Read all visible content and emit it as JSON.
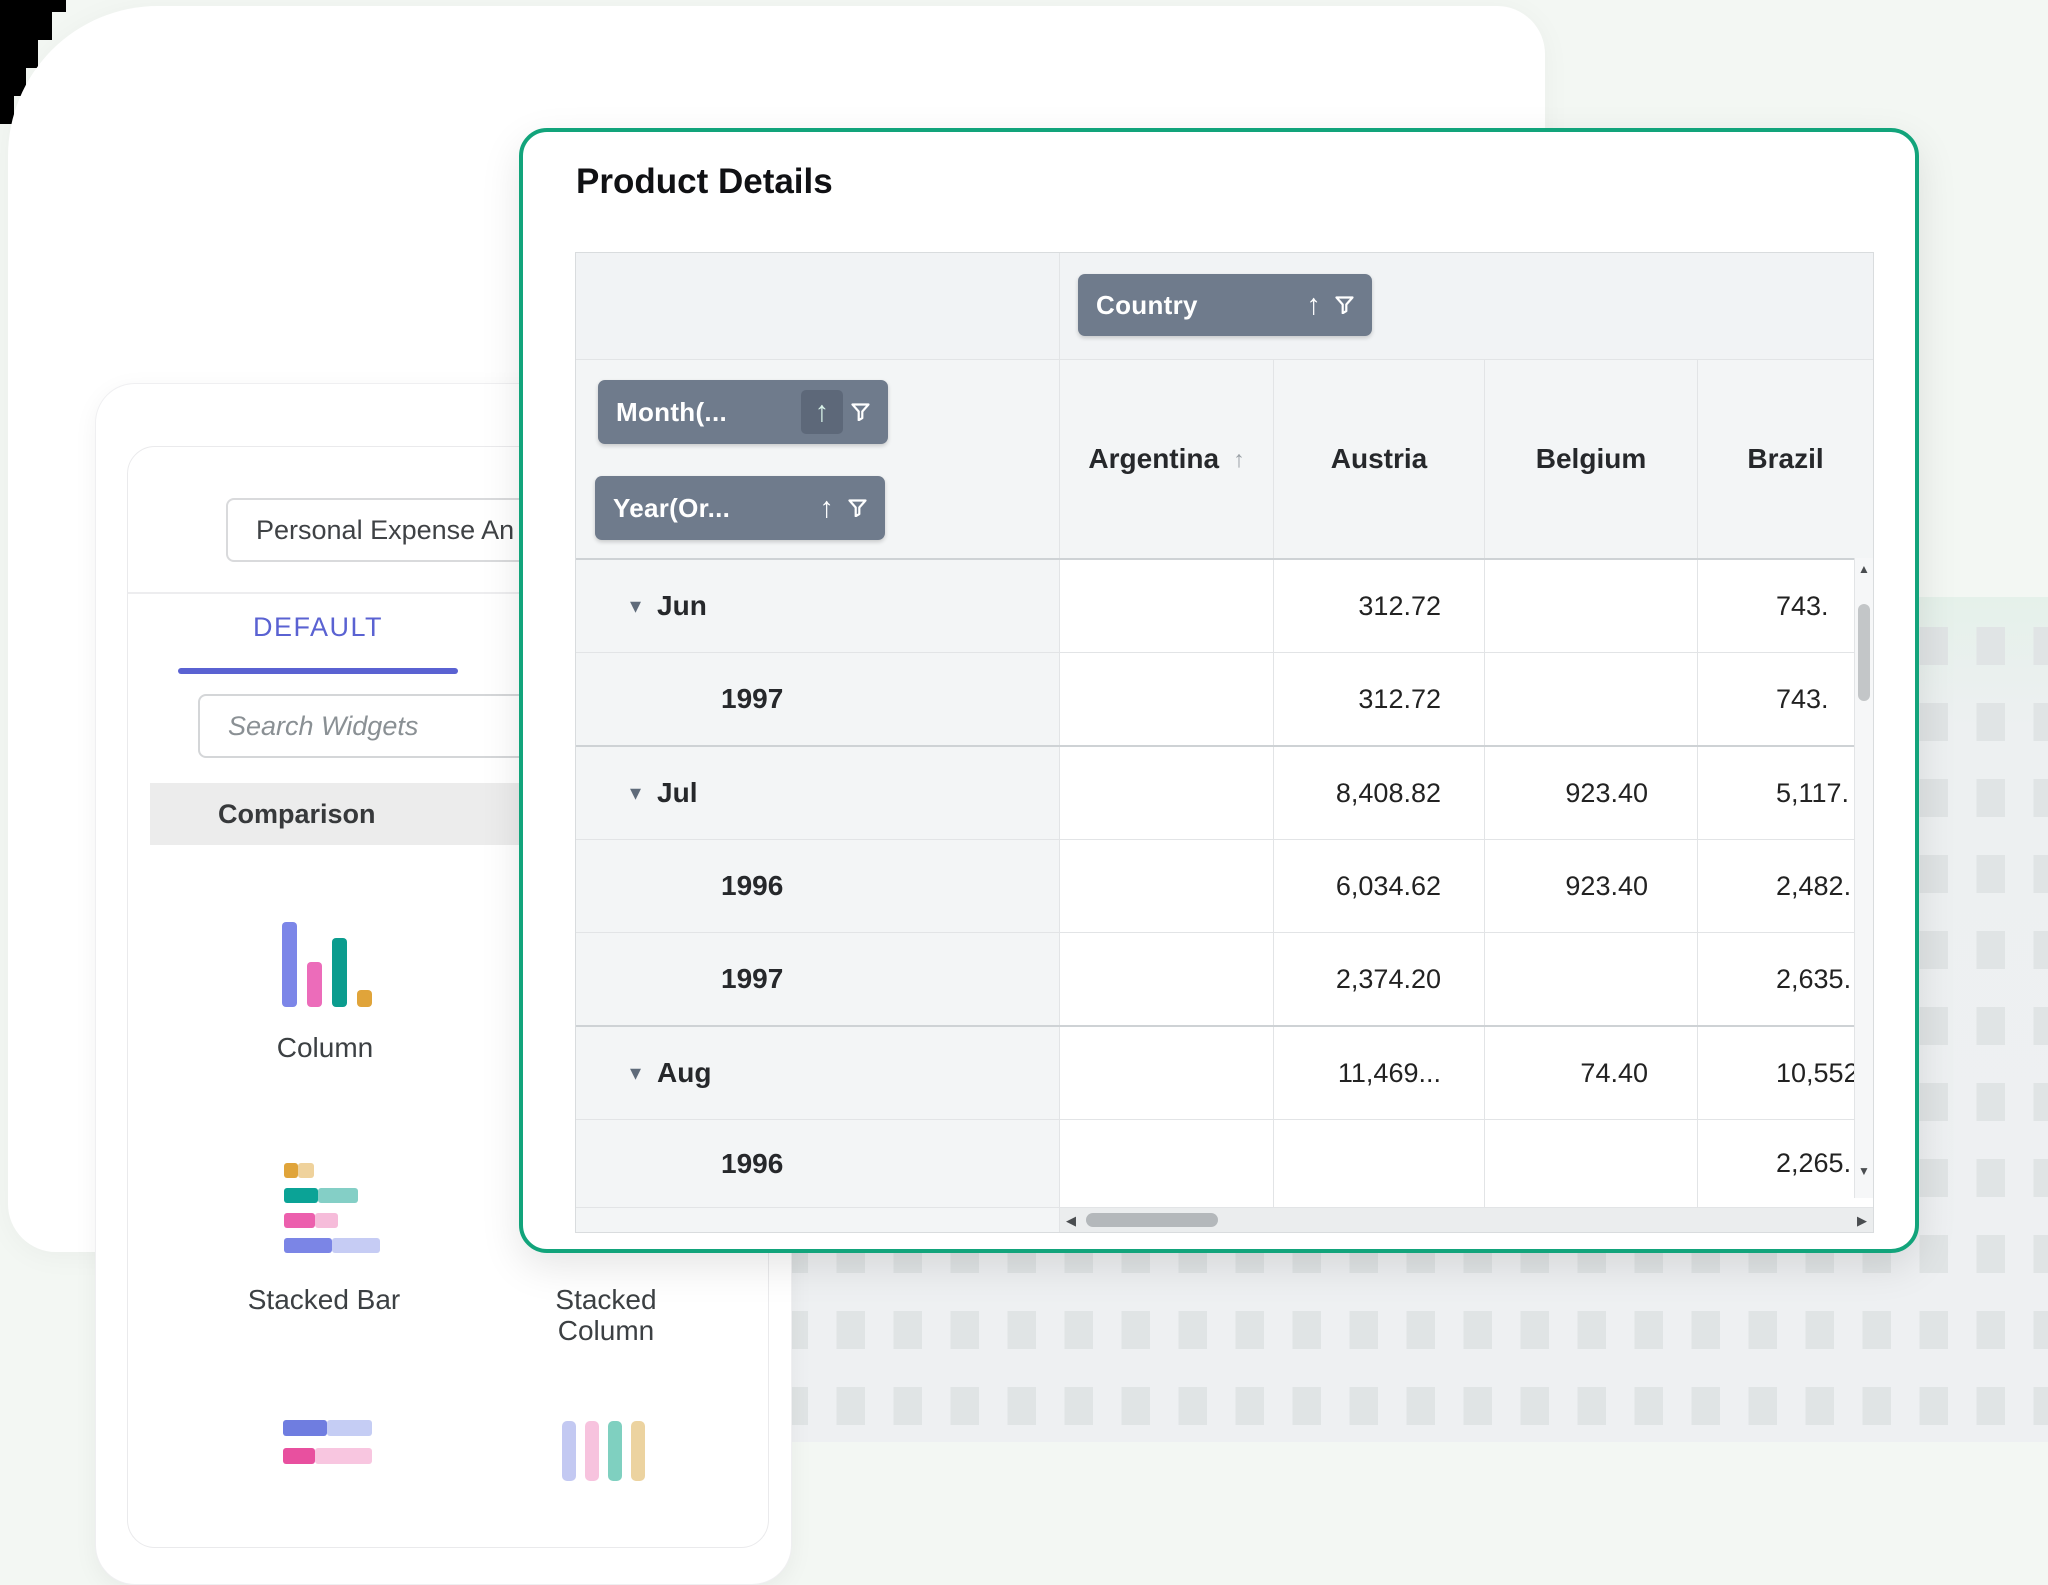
{
  "pivot_card": {
    "title": "Product Details",
    "column_field": {
      "label": "Country"
    },
    "row_fields": [
      {
        "label": "Month(..."
      },
      {
        "label": "Year(Or..."
      }
    ],
    "columns": [
      "Argentina",
      "Austria",
      "Belgium",
      "Brazil"
    ],
    "rows": [
      {
        "label": "Jun",
        "type": "group",
        "values": [
          "",
          "312.72",
          "",
          "743."
        ]
      },
      {
        "label": "1997",
        "type": "detail",
        "values": [
          "",
          "312.72",
          "",
          "743."
        ]
      },
      {
        "label": "Jul",
        "type": "group",
        "values": [
          "",
          "8,408.82",
          "923.40",
          "5,117."
        ]
      },
      {
        "label": "1996",
        "type": "detail",
        "values": [
          "",
          "6,034.62",
          "923.40",
          "2,482."
        ]
      },
      {
        "label": "1997",
        "type": "detail",
        "values": [
          "",
          "2,374.20",
          "",
          "2,635."
        ]
      },
      {
        "label": "Aug",
        "type": "group",
        "values": [
          "",
          "11,469...",
          "74.40",
          "10,552"
        ]
      },
      {
        "label": "1996",
        "type": "detail",
        "values": [
          "",
          "",
          "",
          "2,265."
        ]
      }
    ]
  },
  "widget_panel": {
    "dashboard_title": "Personal Expense An",
    "tab_label": "DEFAULT",
    "search_placeholder": "Search Widgets",
    "category_label": "Comparison",
    "widgets": [
      {
        "label": "Column"
      },
      {
        "label": "Stacked Bar"
      },
      {
        "label": "Stacked Column"
      }
    ]
  },
  "icons": {
    "sort_asc": "↑",
    "expand": "▾",
    "scroll_up": "▲",
    "scroll_down": "▼",
    "scroll_left": "◀",
    "scroll_right": "▶"
  },
  "colors": {
    "accent_green": "#12a47b",
    "field_button": "#6f7b8c",
    "tab_accent": "#5a62d2",
    "header_bg": "#f1f3f5"
  }
}
